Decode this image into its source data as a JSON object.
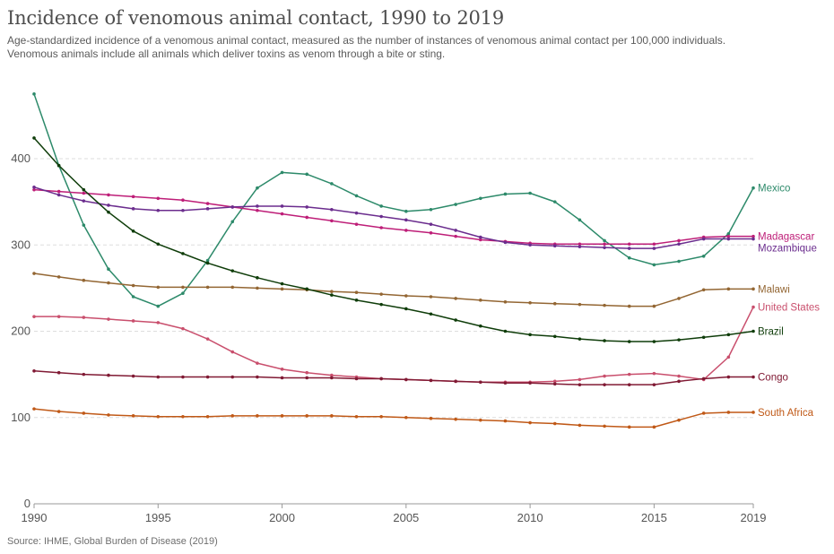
{
  "chart_data": {
    "type": "line",
    "title": "Incidence of venomous animal contact, 1990 to 2019",
    "subtitle_line1": "Age-standardized incidence of a venomous animal contact, measured as the number of instances of venomous animal contact per 100,000 individuals.",
    "subtitle_line2": "Venomous animals include all animals which deliver toxins as venom through a bite or sting.",
    "source": "Source: IHME, Global Burden of Disease (2019)",
    "xlabel": "",
    "ylabel": "",
    "xlim": [
      1990,
      2019
    ],
    "ylim": [
      0,
      480
    ],
    "x_ticks": [
      1990,
      1995,
      2000,
      2005,
      2010,
      2015,
      2019
    ],
    "y_ticks": [
      0,
      100,
      200,
      300,
      400
    ],
    "x": [
      1990,
      1991,
      1992,
      1993,
      1994,
      1995,
      1996,
      1997,
      1998,
      1999,
      2000,
      2001,
      2002,
      2003,
      2004,
      2005,
      2006,
      2007,
      2008,
      2009,
      2010,
      2011,
      2012,
      2013,
      2014,
      2015,
      2016,
      2017,
      2018,
      2019
    ],
    "series": [
      {
        "name": "Mexico",
        "color": "#2d8a6a",
        "values": [
          475,
          392,
          323,
          272,
          240,
          229,
          244,
          282,
          327,
          366,
          384,
          382,
          371,
          357,
          345,
          339,
          341,
          347,
          354,
          359,
          360,
          350,
          329,
          305,
          285,
          277,
          281,
          287,
          313,
          366
        ]
      },
      {
        "name": "Madagascar",
        "color": "#be1e78",
        "values": [
          364,
          362,
          360,
          358,
          356,
          354,
          352,
          348,
          344,
          340,
          336,
          332,
          328,
          324,
          320,
          317,
          314,
          310,
          306,
          304,
          302,
          301,
          301,
          301,
          301,
          301,
          305,
          309,
          310,
          310
        ]
      },
      {
        "name": "Mozambique",
        "color": "#6b2d8e",
        "values": [
          367,
          358,
          351,
          346,
          342,
          340,
          340,
          342,
          344,
          345,
          345,
          344,
          341,
          337,
          333,
          329,
          324,
          317,
          309,
          303,
          300,
          299,
          298,
          297,
          296,
          296,
          301,
          307,
          307,
          307
        ]
      },
      {
        "name": "Malawi",
        "color": "#936633",
        "values": [
          267,
          263,
          259,
          256,
          253,
          251,
          251,
          251,
          251,
          250,
          249,
          248,
          246,
          245,
          243,
          241,
          240,
          238,
          236,
          234,
          233,
          232,
          231,
          230,
          229,
          229,
          238,
          248,
          249,
          249
        ]
      },
      {
        "name": "United States",
        "color": "#c94f6d",
        "values": [
          217,
          217,
          216,
          214,
          212,
          210,
          203,
          191,
          176,
          163,
          156,
          152,
          149,
          147,
          145,
          144,
          143,
          142,
          141,
          141,
          141,
          142,
          144,
          148,
          150,
          151,
          148,
          144,
          170,
          228
        ]
      },
      {
        "name": "Brazil",
        "color": "#0f3d0a",
        "values": [
          424,
          392,
          364,
          338,
          316,
          301,
          290,
          279,
          270,
          262,
          255,
          249,
          242,
          236,
          231,
          226,
          220,
          213,
          206,
          200,
          196,
          194,
          191,
          189,
          188,
          188,
          190,
          193,
          196,
          200
        ]
      },
      {
        "name": "Congo",
        "color": "#801a34",
        "values": [
          154,
          152,
          150,
          149,
          148,
          147,
          147,
          147,
          147,
          147,
          146,
          146,
          146,
          145,
          145,
          144,
          143,
          142,
          141,
          140,
          140,
          139,
          138,
          138,
          138,
          138,
          142,
          145,
          147,
          147
        ]
      },
      {
        "name": "South Africa",
        "color": "#c05917",
        "values": [
          110,
          107,
          105,
          103,
          102,
          101,
          101,
          101,
          102,
          102,
          102,
          102,
          102,
          101,
          101,
          100,
          99,
          98,
          97,
          96,
          94,
          93,
          91,
          90,
          89,
          89,
          97,
          105,
          106,
          106
        ]
      }
    ]
  }
}
